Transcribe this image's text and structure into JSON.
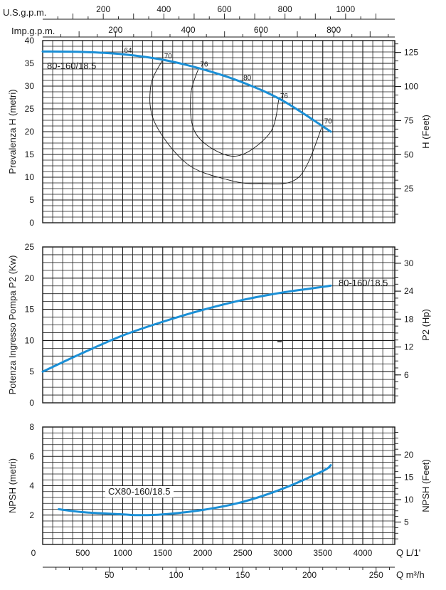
{
  "chart_data": [
    {
      "type": "line",
      "ylabel": "Prevalenza H (metri)",
      "y2label": "H (Feet)",
      "xlim": [
        0,
        4400
      ],
      "ylim": [
        0,
        40
      ],
      "y_ticks": [
        0,
        5,
        10,
        15,
        20,
        25,
        30,
        35,
        40
      ],
      "y2_ticks": [
        25,
        50,
        75,
        100,
        125
      ],
      "top_axes": [
        {
          "label": "U.S.g.p.m.",
          "ticks": [
            200,
            400,
            600,
            800,
            1000
          ]
        },
        {
          "label": "Imp.g.p.m.",
          "ticks": [
            200,
            400,
            600,
            800
          ]
        }
      ],
      "series": [
        {
          "name": "80-160/18.5",
          "color": "#1a8fd6",
          "x": [
            0,
            500,
            1000,
            1500,
            2000,
            2500,
            3000,
            3600
          ],
          "y": [
            37.6,
            37.5,
            37.0,
            35.8,
            33.7,
            30.8,
            26.8,
            20.0
          ]
        }
      ],
      "efficiency_curves": [
        {
          "label": "64",
          "x": [
            1000
          ],
          "y": [
            37.0
          ]
        },
        {
          "label": "70",
          "x": [
            1500,
            1350,
            1400,
            1800,
            2300,
            2700,
            3200,
            3500
          ],
          "y": [
            35.8,
            30.0,
            22.0,
            13.0,
            9.5,
            8.6,
            10.0,
            21.5
          ]
        },
        {
          "label": "76",
          "x": [
            1950,
            1850,
            1900,
            2200,
            2500,
            2850,
            2950
          ],
          "y": [
            34.0,
            28.0,
            20.0,
            15.5,
            15.0,
            20.0,
            27.0
          ]
        },
        {
          "label": "80",
          "x": [
            2490
          ],
          "y": [
            31.0
          ]
        }
      ]
    },
    {
      "type": "line",
      "ylabel": "Potenza Ingresso Pompa P2 (Kw)",
      "y2label": "P2 (Hp)",
      "xlim": [
        0,
        4400
      ],
      "ylim": [
        0,
        25
      ],
      "y_ticks": [
        0,
        5,
        10,
        15,
        20,
        25
      ],
      "y2_ticks": [
        6,
        12,
        18,
        24,
        30
      ],
      "series": [
        {
          "name": "80-160/18.5",
          "color": "#1a8fd6",
          "x": [
            0,
            500,
            1000,
            1500,
            2000,
            2500,
            3000,
            3500,
            3600
          ],
          "y": [
            5.0,
            8.0,
            10.8,
            13.0,
            14.9,
            16.5,
            17.7,
            18.6,
            18.8
          ]
        }
      ]
    },
    {
      "type": "line",
      "ylabel": "NPSH (metri)",
      "y2label": "NPSH (Feet)",
      "xlim": [
        0,
        4400
      ],
      "ylim": [
        0,
        8
      ],
      "y_ticks": [
        2,
        4,
        6,
        8
      ],
      "y2_ticks": [
        5,
        10,
        15,
        20
      ],
      "x_ticks_primary": {
        "label": "Q L/1'",
        "ticks": [
          0,
          500,
          1000,
          1500,
          2000,
          2500,
          3000,
          3500,
          4000
        ]
      },
      "x_ticks_secondary": {
        "label": "Q m³/h",
        "ticks": [
          50,
          100,
          150,
          200,
          250
        ]
      },
      "series": [
        {
          "name": "CX80-160/18.5",
          "color": "#1a8fd6",
          "x": [
            200,
            500,
            1000,
            1200,
            1500,
            2000,
            2500,
            3000,
            3500,
            3600
          ],
          "y": [
            2.4,
            2.2,
            2.05,
            2.0,
            2.05,
            2.35,
            2.9,
            3.8,
            5.0,
            5.4
          ]
        }
      ]
    }
  ]
}
